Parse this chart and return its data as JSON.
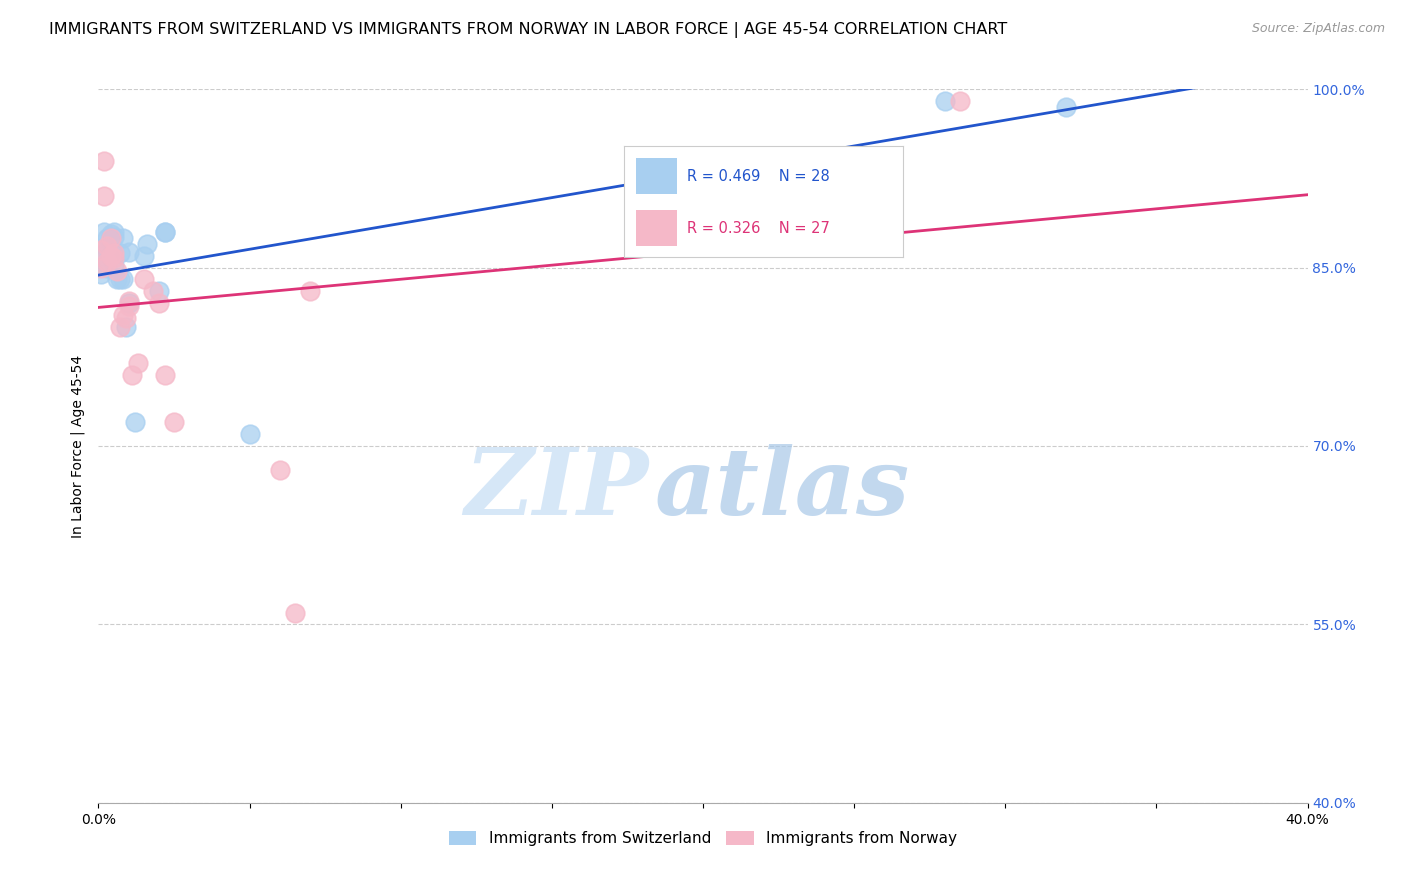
{
  "title": "IMMIGRANTS FROM SWITZERLAND VS IMMIGRANTS FROM NORWAY IN LABOR FORCE | AGE 45-54 CORRELATION CHART",
  "source": "Source: ZipAtlas.com",
  "ylabel": "In Labor Force | Age 45-54",
  "xlim": [
    0.0,
    0.4
  ],
  "ylim": [
    0.4,
    1.0
  ],
  "xticks": [
    0.0,
    0.05,
    0.1,
    0.15,
    0.2,
    0.25,
    0.3,
    0.35,
    0.4
  ],
  "xticklabels": [
    "0.0%",
    "",
    "",
    "",
    "",
    "",
    "",
    "",
    "40.0%"
  ],
  "yticks": [
    0.4,
    0.55,
    0.7,
    0.85,
    1.0
  ],
  "yticklabels": [
    "40.0%",
    "55.0%",
    "70.0%",
    "85.0%",
    "100.0%"
  ],
  "grid_color": "#cccccc",
  "background_color": "#ffffff",
  "swiss_color": "#a8cff0",
  "norway_color": "#f5b8c8",
  "swiss_line_color": "#2255cc",
  "norway_line_color": "#dd3377",
  "swiss_R": 0.469,
  "swiss_N": 28,
  "norway_R": 0.326,
  "norway_N": 27,
  "swiss_x": [
    0.001,
    0.001,
    0.002,
    0.003,
    0.003,
    0.003,
    0.004,
    0.004,
    0.005,
    0.005,
    0.005,
    0.006,
    0.007,
    0.007,
    0.008,
    0.008,
    0.009,
    0.01,
    0.01,
    0.012,
    0.015,
    0.016,
    0.02,
    0.022,
    0.022,
    0.05,
    0.28,
    0.32
  ],
  "swiss_y": [
    0.845,
    0.86,
    0.88,
    0.85,
    0.865,
    0.875,
    0.87,
    0.878,
    0.876,
    0.88,
    0.852,
    0.84,
    0.84,
    0.862,
    0.84,
    0.875,
    0.8,
    0.82,
    0.863,
    0.72,
    0.86,
    0.87,
    0.83,
    0.88,
    0.88,
    0.71,
    0.99,
    0.985
  ],
  "norway_x": [
    0.001,
    0.001,
    0.002,
    0.002,
    0.003,
    0.003,
    0.004,
    0.004,
    0.005,
    0.005,
    0.006,
    0.007,
    0.008,
    0.009,
    0.01,
    0.01,
    0.011,
    0.013,
    0.015,
    0.018,
    0.02,
    0.022,
    0.025,
    0.06,
    0.065,
    0.07,
    0.285
  ],
  "norway_y": [
    0.85,
    0.865,
    0.94,
    0.91,
    0.855,
    0.868,
    0.86,
    0.875,
    0.858,
    0.862,
    0.847,
    0.8,
    0.81,
    0.808,
    0.818,
    0.822,
    0.76,
    0.77,
    0.84,
    0.83,
    0.82,
    0.76,
    0.72,
    0.68,
    0.56,
    0.83,
    0.99
  ],
  "watermark_zip": "ZIP",
  "watermark_atlas": "atlas",
  "title_fontsize": 11.5,
  "label_fontsize": 10,
  "tick_fontsize": 10,
  "legend_fontsize": 11,
  "tick_color": "#3366dd"
}
